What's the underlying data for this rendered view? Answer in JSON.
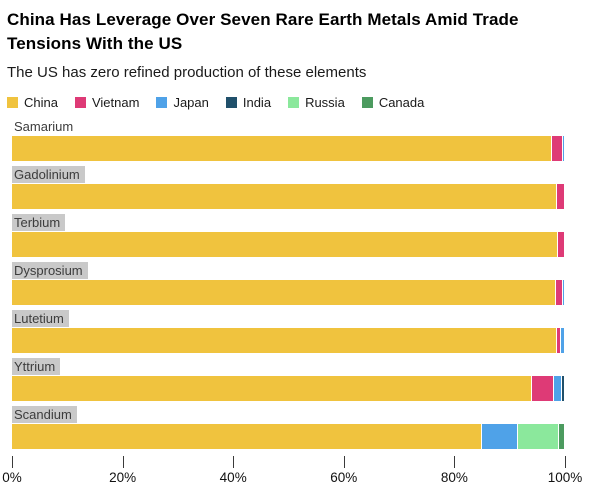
{
  "header": {
    "title": "China Has Leverage Over Seven Rare Earth Metals Amid Trade Tensions With the US",
    "subtitle": "The US has zero refined production of these elements"
  },
  "legend": {
    "items": [
      {
        "label": "China",
        "color": "#F0C33E"
      },
      {
        "label": "Vietnam",
        "color": "#DE3A76"
      },
      {
        "label": "Japan",
        "color": "#4FA2E8"
      },
      {
        "label": "India",
        "color": "#20506B"
      },
      {
        "label": "Russia",
        "color": "#8BE89C"
      },
      {
        "label": "Canada",
        "color": "#4C9B5F"
      }
    ]
  },
  "chart_data": {
    "type": "bar",
    "orientation": "horizontal",
    "stacked": true,
    "title": "China Has Leverage Over Seven Rare Earth Metals Amid Trade Tensions With the US",
    "subtitle": "The US has zero refined production of these elements",
    "xlabel": "",
    "ylabel": "",
    "legend_position": "top",
    "grid": false,
    "categories": [
      {
        "label": "Samarium",
        "highlighted": false
      },
      {
        "label": "Gadolinium",
        "highlighted": true
      },
      {
        "label": "Terbium",
        "highlighted": true
      },
      {
        "label": "Dysprosium",
        "highlighted": true
      },
      {
        "label": "Lutetium",
        "highlighted": true
      },
      {
        "label": "Yttrium",
        "highlighted": true
      },
      {
        "label": "Scandium",
        "highlighted": true
      }
    ],
    "series": [
      {
        "name": "China",
        "color": "#F0C33E",
        "values": [
          97.6,
          98.6,
          98.8,
          98.4,
          98.5,
          94.0,
          85.0
        ]
      },
      {
        "name": "Vietnam",
        "color": "#DE3A76",
        "values": [
          2.0,
          1.4,
          1.2,
          1.2,
          0.7,
          4.0,
          0
        ]
      },
      {
        "name": "Japan",
        "color": "#4FA2E8",
        "values": [
          0.4,
          0,
          0,
          0.4,
          0.8,
          1.4,
          6.5
        ]
      },
      {
        "name": "India",
        "color": "#20506B",
        "values": [
          0,
          0,
          0,
          0,
          0,
          0.6,
          0
        ]
      },
      {
        "name": "Russia",
        "color": "#8BE89C",
        "values": [
          0,
          0,
          0,
          0,
          0,
          0,
          7.5
        ]
      },
      {
        "name": "Canada",
        "color": "#4C9B5F",
        "values": [
          0,
          0,
          0,
          0,
          0,
          0,
          1.0
        ]
      }
    ],
    "x_axis": {
      "min": 0,
      "max": 100,
      "ticks": [
        "0%",
        "20%",
        "40%",
        "60%",
        "80%",
        "100%"
      ]
    }
  }
}
